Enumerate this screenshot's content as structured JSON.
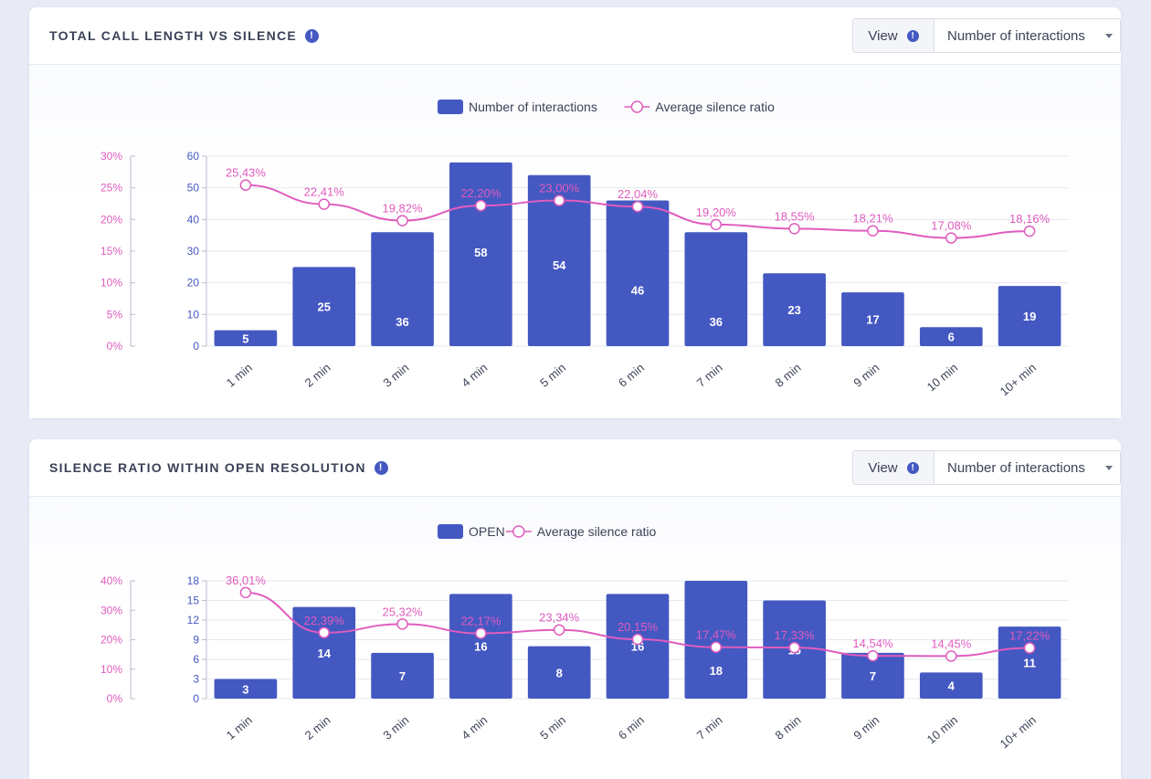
{
  "panels": [
    {
      "title": "TOTAL CALL LENGTH VS SILENCE",
      "view_label": "View",
      "select_value": "Number of interactions",
      "chart_data": {
        "type": "bar",
        "categories": [
          "1 min",
          "2 min",
          "3 min",
          "4 min",
          "5 min",
          "6 min",
          "7 min",
          "8 min",
          "9 min",
          "10 min",
          "10+ min"
        ],
        "series": [
          {
            "name": "Number of interactions",
            "type": "bar",
            "axis": "left",
            "values": [
              5,
              25,
              36,
              58,
              54,
              46,
              36,
              23,
              17,
              6,
              19
            ],
            "labels": [
              "5",
              "25",
              "36",
              "58",
              "54",
              "46",
              "36",
              "23",
              "17",
              "6",
              "19"
            ]
          },
          {
            "name": "Average silence ratio",
            "type": "line",
            "axis": "right",
            "values": [
              25.43,
              22.41,
              19.82,
              22.2,
              23.0,
              22.04,
              19.2,
              18.55,
              18.21,
              17.08,
              18.16
            ],
            "labels": [
              "25,43%",
              "22,41%",
              "19,82%",
              "22,20%",
              "23,00%",
              "22,04%",
              "19,20%",
              "18,55%",
              "18,21%",
              "17,08%",
              "18,16%"
            ]
          }
        ],
        "y_left": {
          "min": 0,
          "max": 60,
          "ticks": [
            "0",
            "10",
            "20",
            "30",
            "40",
            "50",
            "60"
          ]
        },
        "y_right": {
          "min": 0,
          "max": 30,
          "ticks": [
            "0%",
            "5%",
            "10%",
            "15%",
            "20%",
            "25%",
            "30%"
          ]
        },
        "legend_position": "top-center",
        "grid": true
      }
    },
    {
      "title": "SILENCE RATIO WITHIN OPEN RESOLUTION",
      "view_label": "View",
      "select_value": "Number of interactions",
      "chart_data": {
        "type": "bar",
        "categories": [
          "1 min",
          "2 min",
          "3 min",
          "4 min",
          "5 min",
          "6 min",
          "7 min",
          "8 min",
          "9 min",
          "10 min",
          "10+ min"
        ],
        "series": [
          {
            "name": "OPEN",
            "type": "bar",
            "axis": "left",
            "values": [
              3,
              14,
              7,
              16,
              8,
              16,
              18,
              15,
              7,
              4,
              11
            ],
            "labels": [
              "3",
              "14",
              "7",
              "16",
              "8",
              "16",
              "18",
              "15",
              "7",
              "4",
              "11"
            ]
          },
          {
            "name": "Average silence ratio",
            "type": "line",
            "axis": "right",
            "values": [
              36.01,
              22.39,
              25.32,
              22.17,
              23.34,
              20.15,
              17.47,
              17.33,
              14.54,
              14.45,
              17.22
            ],
            "labels": [
              "36,01%",
              "22,39%",
              "25,32%",
              "22,17%",
              "23,34%",
              "20,15%",
              "17,47%",
              "17,33%",
              "14,54%",
              "14,45%",
              "17,22%"
            ]
          }
        ],
        "y_left": {
          "min": 0,
          "max": 18,
          "ticks": [
            "0",
            "3",
            "6",
            "9",
            "12",
            "15",
            "18"
          ]
        },
        "y_right": {
          "min": 0,
          "max": 40,
          "ticks": [
            "0%",
            "10%",
            "20%",
            "30%",
            "40%"
          ]
        },
        "legend_position": "top-center",
        "grid": true
      }
    }
  ],
  "colors": {
    "bar": "#4458c2",
    "line": "#e05cbe",
    "grid": "#e6e8ef",
    "axis": "#b9bdcc"
  },
  "icons": {
    "info": "info-icon"
  }
}
